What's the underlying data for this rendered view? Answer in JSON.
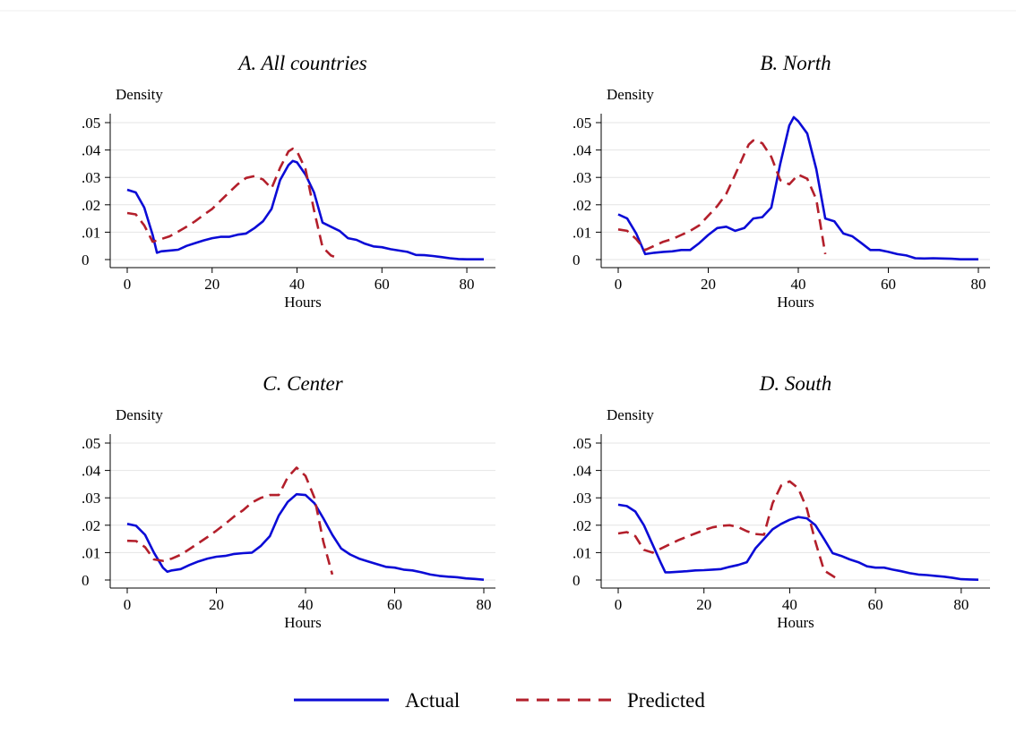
{
  "colors": {
    "actual": "#0b0bd6",
    "predicted": "#b31f2b"
  },
  "legend": {
    "actual_label": "Actual",
    "predicted_label": "Predicted",
    "placement": "bottom-center"
  },
  "chart_data": [
    {
      "type": "line",
      "title": "A. All countries",
      "xlabel": "Hours",
      "ylabel": "Density",
      "xlim": [
        0,
        84
      ],
      "ylim": [
        0,
        0.05
      ],
      "xticks": [
        0,
        20,
        40,
        60,
        80
      ],
      "xtick_labels": [
        "0",
        "20",
        "40",
        "60",
        "80"
      ],
      "yticks": [
        0,
        0.01,
        0.02,
        0.03,
        0.04,
        0.05
      ],
      "ytick_labels": [
        "0",
        ".01",
        ".02",
        ".03",
        ".04",
        ".05"
      ],
      "grid": true,
      "series": [
        {
          "name": "Actual",
          "style": "solid",
          "x": [
            0,
            2,
            4,
            6,
            7,
            8,
            10,
            12,
            14,
            16,
            18,
            20,
            22,
            24,
            26,
            28,
            30,
            32,
            34,
            36,
            38,
            39,
            40,
            42,
            44,
            46,
            48,
            50,
            52,
            54,
            56,
            58,
            60,
            62,
            64,
            66,
            68,
            70,
            72,
            74,
            76,
            78,
            80,
            82,
            84
          ],
          "y": [
            0.0255,
            0.0245,
            0.019,
            0.009,
            0.0025,
            0.003,
            0.0033,
            0.0036,
            0.005,
            0.006,
            0.007,
            0.0078,
            0.0083,
            0.0083,
            0.0091,
            0.0095,
            0.0115,
            0.014,
            0.0185,
            0.029,
            0.0345,
            0.036,
            0.0355,
            0.031,
            0.0245,
            0.0135,
            0.012,
            0.0105,
            0.0078,
            0.0072,
            0.0058,
            0.0048,
            0.0045,
            0.0038,
            0.0033,
            0.0028,
            0.0017,
            0.0016,
            0.0013,
            0.0009,
            0.0005,
            0.0002,
            0.0001,
            0.0001,
            0.0001
          ]
        },
        {
          "name": "Predicted",
          "style": "dashed",
          "x": [
            0,
            2,
            4,
            6,
            8,
            10,
            12,
            14,
            16,
            18,
            20,
            22,
            24,
            26,
            28,
            30,
            32,
            34,
            36,
            38,
            39,
            40,
            42,
            44,
            46,
            48,
            50
          ],
          "y": [
            0.017,
            0.0165,
            0.0125,
            0.0065,
            0.0075,
            0.0085,
            0.0102,
            0.012,
            0.014,
            0.0163,
            0.0185,
            0.0215,
            0.0245,
            0.0275,
            0.0298,
            0.0305,
            0.0292,
            0.026,
            0.0335,
            0.0395,
            0.0405,
            0.0395,
            0.033,
            0.018,
            0.0045,
            0.0015,
            0.0003
          ]
        }
      ]
    },
    {
      "type": "line",
      "title": "B. North",
      "xlabel": "Hours",
      "ylabel": "Density",
      "xlim": [
        0,
        80
      ],
      "ylim": [
        0,
        0.05
      ],
      "xticks": [
        0,
        20,
        40,
        60,
        80
      ],
      "xtick_labels": [
        "0",
        "20",
        "40",
        "60",
        "80"
      ],
      "yticks": [
        0,
        0.01,
        0.02,
        0.03,
        0.04,
        0.05
      ],
      "ytick_labels": [
        "0",
        ".01",
        ".02",
        ".03",
        ".04",
        ".05"
      ],
      "grid": true,
      "series": [
        {
          "name": "Actual",
          "style": "solid",
          "x": [
            0,
            2,
            4,
            6,
            8,
            10,
            12,
            14,
            16,
            18,
            20,
            22,
            24,
            26,
            28,
            30,
            32,
            34,
            36,
            38,
            39,
            40,
            42,
            44,
            46,
            48,
            50,
            52,
            54,
            56,
            58,
            60,
            62,
            64,
            66,
            68,
            70,
            72,
            74,
            76,
            78,
            80
          ],
          "y": [
            0.0165,
            0.015,
            0.0095,
            0.002,
            0.0025,
            0.0028,
            0.003,
            0.0035,
            0.0035,
            0.006,
            0.009,
            0.0115,
            0.012,
            0.0105,
            0.0115,
            0.015,
            0.0155,
            0.019,
            0.035,
            0.049,
            0.052,
            0.0505,
            0.046,
            0.033,
            0.015,
            0.014,
            0.0095,
            0.0085,
            0.006,
            0.0035,
            0.0035,
            0.0028,
            0.002,
            0.0015,
            0.0005,
            0.0004,
            0.0005,
            0.0004,
            0.0003,
            0.0001,
            0.0001,
            0.0001
          ]
        },
        {
          "name": "Predicted",
          "style": "dashed",
          "x": [
            0,
            2,
            4,
            6,
            8,
            10,
            12,
            14,
            16,
            18,
            20,
            22,
            24,
            26,
            28,
            29,
            30,
            32,
            34,
            36,
            38,
            40,
            42,
            44,
            46
          ],
          "y": [
            0.011,
            0.0105,
            0.0075,
            0.0035,
            0.005,
            0.0065,
            0.0075,
            0.009,
            0.0105,
            0.0125,
            0.016,
            0.0195,
            0.024,
            0.031,
            0.0385,
            0.042,
            0.0435,
            0.0425,
            0.0375,
            0.029,
            0.0275,
            0.031,
            0.0295,
            0.022,
            0.002
          ]
        }
      ]
    },
    {
      "type": "line",
      "title": "C. Center",
      "xlabel": "Hours",
      "ylabel": "Density",
      "xlim": [
        0,
        80
      ],
      "ylim": [
        0,
        0.05
      ],
      "xticks": [
        0,
        20,
        40,
        60,
        80
      ],
      "xtick_labels": [
        "0",
        "20",
        "40",
        "60",
        "80"
      ],
      "yticks": [
        0,
        0.01,
        0.02,
        0.03,
        0.04,
        0.05
      ],
      "ytick_labels": [
        "0",
        ".01",
        ".02",
        ".03",
        ".04",
        ".05"
      ],
      "grid": true,
      "series": [
        {
          "name": "Actual",
          "style": "solid",
          "x": [
            0,
            2,
            4,
            6,
            8,
            9,
            10,
            12,
            14,
            16,
            18,
            20,
            22,
            24,
            26,
            28,
            30,
            32,
            34,
            36,
            38,
            40,
            42,
            44,
            46,
            48,
            50,
            52,
            54,
            56,
            58,
            60,
            62,
            64,
            66,
            68,
            70,
            72,
            74,
            76,
            78,
            80
          ],
          "y": [
            0.0205,
            0.0198,
            0.0165,
            0.01,
            0.0045,
            0.003,
            0.0035,
            0.004,
            0.0055,
            0.0068,
            0.0078,
            0.0085,
            0.0088,
            0.0095,
            0.0098,
            0.01,
            0.0125,
            0.016,
            0.0235,
            0.0285,
            0.0313,
            0.031,
            0.028,
            0.0225,
            0.0165,
            0.0115,
            0.0093,
            0.0078,
            0.0068,
            0.0058,
            0.0048,
            0.0045,
            0.0038,
            0.0035,
            0.0028,
            0.002,
            0.0015,
            0.0012,
            0.001,
            0.0006,
            0.0004,
            0.0001
          ]
        },
        {
          "name": "Predicted",
          "style": "dashed",
          "x": [
            0,
            2,
            4,
            6,
            8,
            10,
            12,
            14,
            16,
            18,
            20,
            22,
            24,
            26,
            28,
            30,
            32,
            34,
            36,
            38,
            40,
            42,
            44,
            46
          ],
          "y": [
            0.0143,
            0.0142,
            0.012,
            0.0075,
            0.007,
            0.0078,
            0.0092,
            0.0113,
            0.0135,
            0.0157,
            0.018,
            0.0205,
            0.0232,
            0.0255,
            0.0283,
            0.03,
            0.031,
            0.031,
            0.0375,
            0.041,
            0.038,
            0.03,
            0.014,
            0.002
          ]
        }
      ]
    },
    {
      "type": "line",
      "title": "D. South",
      "xlabel": "Hours",
      "ylabel": "Density",
      "xlim": [
        0,
        84
      ],
      "ylim": [
        0,
        0.05
      ],
      "xticks": [
        0,
        20,
        40,
        60,
        80
      ],
      "xtick_labels": [
        "0",
        "20",
        "40",
        "60",
        "80"
      ],
      "yticks": [
        0,
        0.01,
        0.02,
        0.03,
        0.04,
        0.05
      ],
      "ytick_labels": [
        "0",
        ".01",
        ".02",
        ".03",
        ".04",
        ".05"
      ],
      "grid": true,
      "series": [
        {
          "name": "Actual",
          "style": "solid",
          "x": [
            0,
            2,
            4,
            6,
            8,
            10,
            11,
            12,
            14,
            16,
            18,
            20,
            22,
            24,
            26,
            28,
            30,
            32,
            34,
            36,
            38,
            40,
            42,
            44,
            46,
            48,
            50,
            52,
            54,
            56,
            58,
            60,
            62,
            64,
            66,
            68,
            70,
            72,
            74,
            76,
            78,
            80,
            82,
            84
          ],
          "y": [
            0.0275,
            0.027,
            0.025,
            0.02,
            0.013,
            0.006,
            0.0028,
            0.0028,
            0.003,
            0.0032,
            0.0035,
            0.0036,
            0.0038,
            0.004,
            0.0048,
            0.0055,
            0.0065,
            0.0115,
            0.015,
            0.0185,
            0.0205,
            0.022,
            0.023,
            0.0225,
            0.02,
            0.015,
            0.0098,
            0.0088,
            0.0075,
            0.0065,
            0.005,
            0.0045,
            0.0045,
            0.0038,
            0.0032,
            0.0025,
            0.002,
            0.0018,
            0.0015,
            0.0012,
            0.0008,
            0.0003,
            0.0002,
            0.0001
          ]
        },
        {
          "name": "Predicted",
          "style": "dashed",
          "x": [
            0,
            2,
            4,
            6,
            8,
            10,
            12,
            14,
            16,
            18,
            20,
            22,
            24,
            26,
            28,
            30,
            32,
            34,
            36,
            38,
            40,
            42,
            44,
            46,
            48,
            50,
            51
          ],
          "y": [
            0.017,
            0.0175,
            0.016,
            0.011,
            0.01,
            0.0115,
            0.013,
            0.0145,
            0.0158,
            0.017,
            0.0182,
            0.0192,
            0.0198,
            0.02,
            0.0193,
            0.0178,
            0.0168,
            0.0165,
            0.028,
            0.0345,
            0.036,
            0.0335,
            0.026,
            0.014,
            0.0035,
            0.0015,
            0.0005
          ]
        }
      ]
    }
  ]
}
